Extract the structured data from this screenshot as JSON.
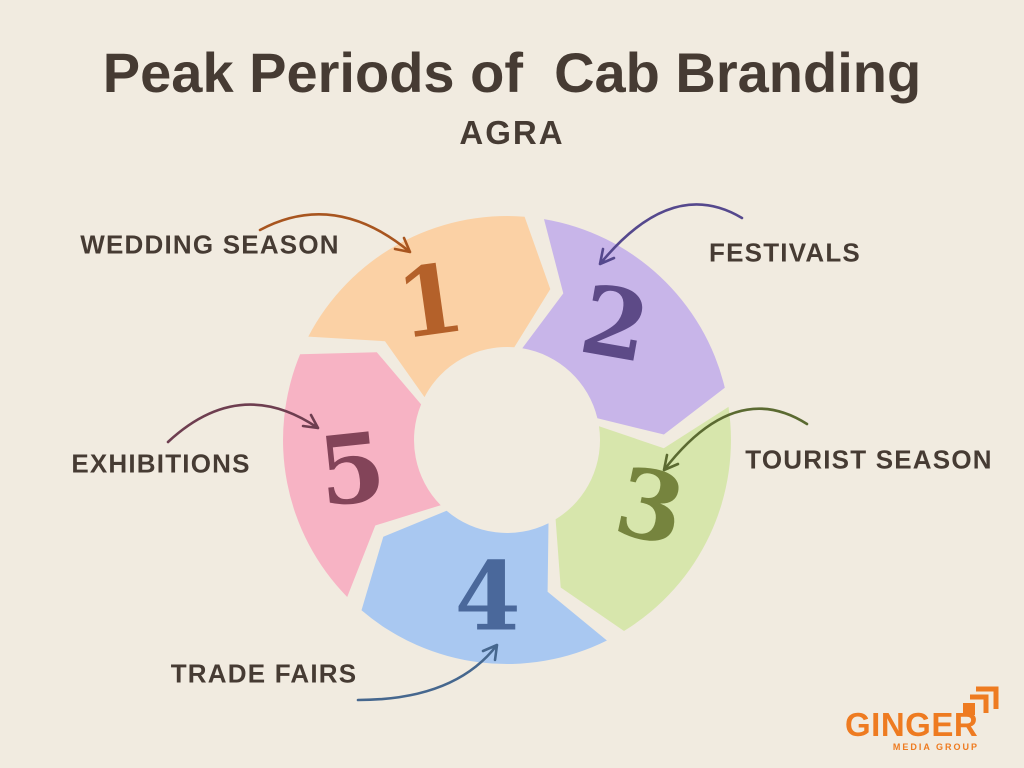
{
  "title": "Peak Periods of  Cab Branding",
  "subtitle": "AGRA",
  "colors": {
    "background": "#F1EBE0",
    "text": "#463B33",
    "brand_orange": "#EE7B21"
  },
  "chart_data": {
    "type": "cycle-diagram",
    "title": "Peak Periods of Cab Branding",
    "subtitle": "AGRA",
    "direction": "clockwise",
    "segments": [
      {
        "number": "1",
        "label": "WEDDING SEASON",
        "fill": "#FBD1A5",
        "number_color": "#B4612A",
        "arrow_color": "#A8551F"
      },
      {
        "number": "2",
        "label": "FESTIVALS",
        "fill": "#C8B5E9",
        "number_color": "#5D4A87",
        "arrow_color": "#55488D"
      },
      {
        "number": "3",
        "label": "TOURIST SEASON",
        "fill": "#D7E6AC",
        "number_color": "#76843E",
        "arrow_color": "#5B6A31"
      },
      {
        "number": "4",
        "label": "TRADE FAIRS",
        "fill": "#A9C8F1",
        "number_color": "#4A689B",
        "arrow_color": "#46678E"
      },
      {
        "number": "5",
        "label": "EXHIBITIONS",
        "fill": "#F7B3C4",
        "number_color": "#834459",
        "arrow_color": "#6E3E50"
      }
    ]
  },
  "logo": {
    "name": "GINGER",
    "tagline": "MEDIA GROUP"
  }
}
